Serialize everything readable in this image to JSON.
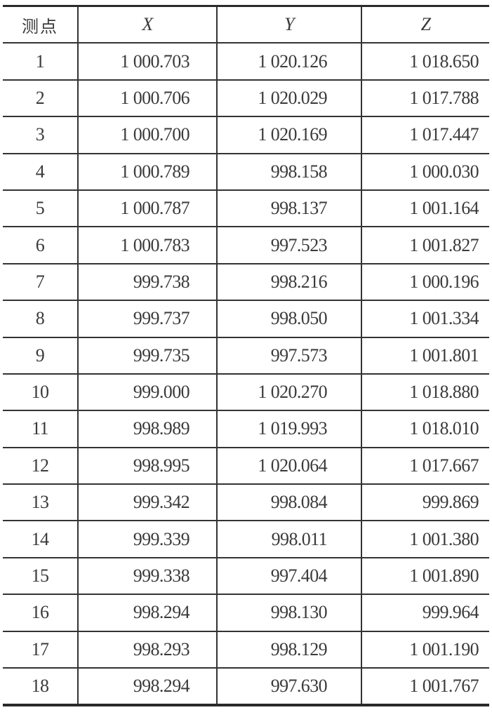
{
  "table": {
    "headers": [
      "测点",
      "X",
      "Y",
      "Z"
    ],
    "rows": [
      [
        "1",
        "1 000.703",
        "1 020.126",
        "1 018.650"
      ],
      [
        "2",
        "1 000.706",
        "1 020.029",
        "1 017.788"
      ],
      [
        "3",
        "1 000.700",
        "1 020.169",
        "1 017.447"
      ],
      [
        "4",
        "1 000.789",
        "998.158",
        "1 000.030"
      ],
      [
        "5",
        "1 000.787",
        "998.137",
        "1 001.164"
      ],
      [
        "6",
        "1 000.783",
        "997.523",
        "1 001.827"
      ],
      [
        "7",
        "999.738",
        "998.216",
        "1 000.196"
      ],
      [
        "8",
        "999.737",
        "998.050",
        "1 001.334"
      ],
      [
        "9",
        "999.735",
        "997.573",
        "1 001.801"
      ],
      [
        "10",
        "999.000",
        "1 020.270",
        "1 018.880"
      ],
      [
        "11",
        "998.989",
        "1 019.993",
        "1 018.010"
      ],
      [
        "12",
        "998.995",
        "1 020.064",
        "1 017.667"
      ],
      [
        "13",
        "999.342",
        "998.084",
        "999.869"
      ],
      [
        "14",
        "999.339",
        "998.011",
        "1 001.380"
      ],
      [
        "15",
        "999.338",
        "997.404",
        "1 001.890"
      ],
      [
        "16",
        "998.294",
        "998.130",
        "999.964"
      ],
      [
        "17",
        "998.293",
        "998.129",
        "1 001.190"
      ],
      [
        "18",
        "998.294",
        "997.630",
        "1 001.767"
      ]
    ]
  }
}
